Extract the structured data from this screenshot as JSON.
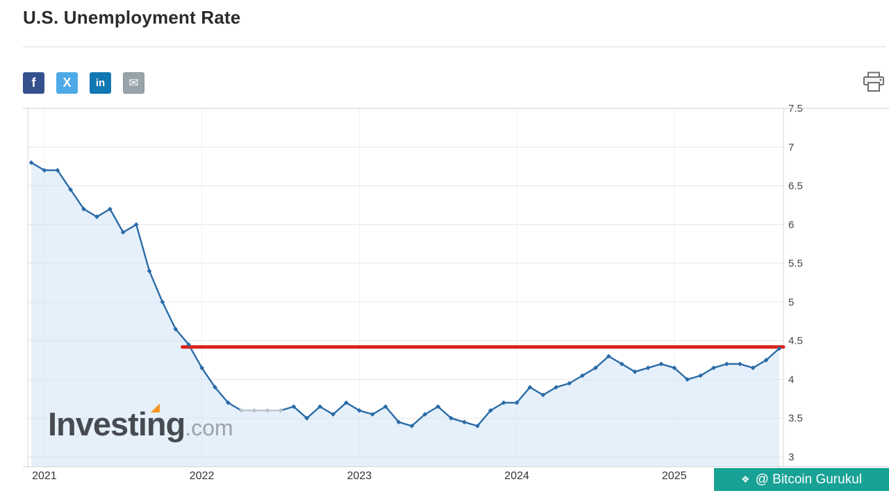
{
  "page": {
    "title": "U.S. Unemployment Rate"
  },
  "share": {
    "buttons": [
      {
        "name": "facebook",
        "glyph": "f",
        "bg": "#35518d"
      },
      {
        "name": "x-twitter",
        "glyph": "X",
        "bg": "#4da9e8"
      },
      {
        "name": "linkedin",
        "glyph": "in",
        "bg": "#1178b3"
      },
      {
        "name": "email",
        "glyph": "✉",
        "bg": "#99a3aa"
      }
    ],
    "print_icon": "printer"
  },
  "watermark": {
    "brand": "Investing",
    "suffix": ".com",
    "accent_color": "#f7941d"
  },
  "credit": {
    "ornament": "❖",
    "text": "@ Bitcoin Gurukul",
    "bg": "#18a295"
  },
  "chart_data": {
    "type": "line",
    "title": "U.S. Unemployment Rate",
    "xlabel": "",
    "ylabel": "",
    "x": [
      "2020-12",
      "2021-01",
      "2021-02",
      "2021-03",
      "2021-04",
      "2021-05",
      "2021-06",
      "2021-07",
      "2021-08",
      "2021-09",
      "2021-10",
      "2021-11",
      "2021-12",
      "2022-01",
      "2022-02",
      "2022-03",
      "2022-04",
      "2022-05",
      "2022-06",
      "2022-07",
      "2022-08",
      "2022-09",
      "2022-10",
      "2022-11",
      "2022-12",
      "2023-01",
      "2023-02",
      "2023-03",
      "2023-04",
      "2023-05",
      "2023-06",
      "2023-07",
      "2023-08",
      "2023-09",
      "2023-10",
      "2023-11",
      "2023-12",
      "2024-01",
      "2024-02",
      "2024-03",
      "2024-04",
      "2024-05",
      "2024-06",
      "2024-07",
      "2024-08",
      "2024-09",
      "2024-10",
      "2024-11",
      "2024-12",
      "2025-01",
      "2025-02",
      "2025-03",
      "2025-04",
      "2025-05",
      "2025-06",
      "2025-07",
      "2025-08",
      "2025-09"
    ],
    "values": [
      6.8,
      6.7,
      6.7,
      6.45,
      6.2,
      6.1,
      6.2,
      5.9,
      6.0,
      5.4,
      5.0,
      4.65,
      4.45,
      4.15,
      3.9,
      3.7,
      3.6,
      3.6,
      3.6,
      3.6,
      3.65,
      3.5,
      3.65,
      3.55,
      3.7,
      3.6,
      3.55,
      3.65,
      3.45,
      3.4,
      3.55,
      3.65,
      3.5,
      3.45,
      3.4,
      3.6,
      3.7,
      3.7,
      3.9,
      3.8,
      3.9,
      3.95,
      4.05,
      4.15,
      4.3,
      4.2,
      4.1,
      4.15,
      4.2,
      4.15,
      4.0,
      4.05,
      4.15,
      4.2,
      4.2,
      4.15,
      4.25,
      4.4
    ],
    "ylim": [
      3,
      7.5
    ],
    "ytick_step": 0.5,
    "ytick_labels": [
      "3",
      "3.5",
      "4",
      "4.5",
      "5",
      "5.5",
      "6",
      "6.5",
      "7",
      "7.5"
    ],
    "xticks": [
      "2021",
      "2022",
      "2023",
      "2024",
      "2025"
    ],
    "xtick_indices": [
      1,
      13,
      25,
      37,
      49
    ],
    "grid": true,
    "legend": "none",
    "series_color": "#2a6ba6",
    "area_color": "#cfe4f7",
    "muted_segment_color": "#b7c3cc",
    "muted_segment": [
      16,
      19
    ],
    "annotation_line": {
      "type": "horizontal",
      "value": 4.42,
      "color": "#da251c",
      "start_index": 12
    }
  }
}
